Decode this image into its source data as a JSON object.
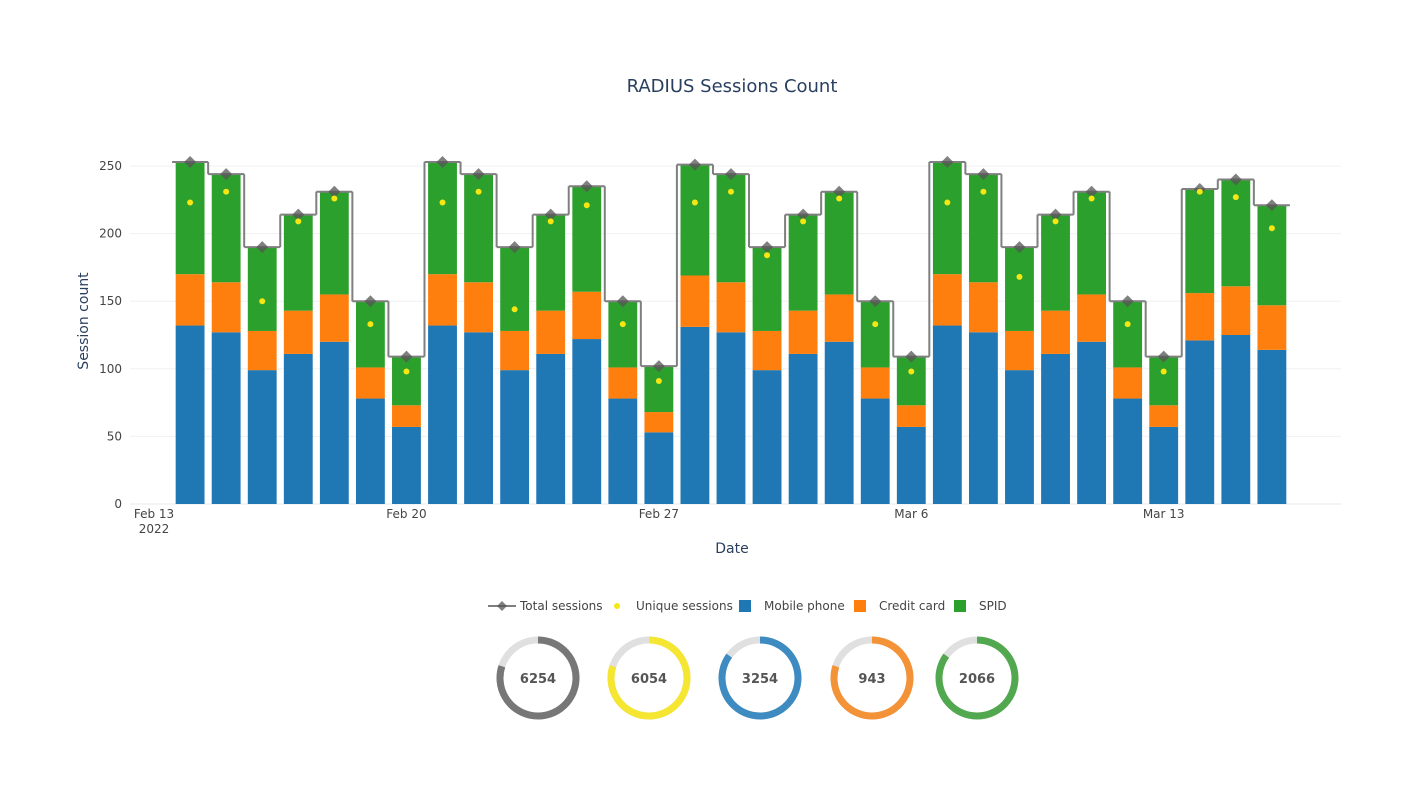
{
  "chart_data": {
    "type": "bar",
    "barmode": "stack",
    "title": "RADIUS Sessions Count",
    "x_label": "Date",
    "y_label": "Session count",
    "x": [
      "2022-02-14",
      "2022-02-15",
      "2022-02-16",
      "2022-02-17",
      "2022-02-18",
      "2022-02-19",
      "2022-02-20",
      "2022-02-21",
      "2022-02-22",
      "2022-02-23",
      "2022-02-24",
      "2022-02-25",
      "2022-02-26",
      "2022-02-27",
      "2022-02-28",
      "2022-03-01",
      "2022-03-02",
      "2022-03-03",
      "2022-03-04",
      "2022-03-05",
      "2022-03-06",
      "2022-03-07",
      "2022-03-08",
      "2022-03-09",
      "2022-03-10",
      "2022-03-11",
      "2022-03-12",
      "2022-03-13",
      "2022-03-14",
      "2022-03-15",
      "2022-03-16"
    ],
    "series": [
      {
        "name": "Total sessions",
        "type": "line",
        "shape": "step",
        "color": "#7f7f7f",
        "marker_color": "#555555",
        "values": [
          253,
          244,
          190,
          214,
          231,
          150,
          109,
          253,
          244,
          190,
          214,
          235,
          150,
          102,
          251,
          244,
          190,
          214,
          231,
          150,
          109,
          253,
          244,
          190,
          214,
          231,
          150,
          109,
          233,
          240,
          221
        ]
      },
      {
        "name": "Unique sessions",
        "type": "scatter",
        "color": "#f5e614",
        "values": [
          223,
          231,
          150,
          209,
          226,
          133,
          98,
          223,
          231,
          144,
          209,
          221,
          133,
          91,
          223,
          231,
          184,
          209,
          226,
          133,
          98,
          223,
          231,
          168,
          209,
          226,
          133,
          98,
          231,
          227,
          204
        ]
      },
      {
        "name": "Mobile phone",
        "type": "bar",
        "color": "#1f77b4",
        "values": [
          132,
          127,
          99,
          111,
          120,
          78,
          57,
          132,
          127,
          99,
          111,
          122,
          78,
          53,
          131,
          127,
          99,
          111,
          120,
          78,
          57,
          132,
          127,
          99,
          111,
          120,
          78,
          57,
          121,
          125,
          114
        ]
      },
      {
        "name": "Credit card",
        "type": "bar",
        "color": "#ff7f0e",
        "values": [
          38,
          37,
          29,
          32,
          35,
          23,
          16,
          38,
          37,
          29,
          32,
          35,
          23,
          15,
          38,
          37,
          29,
          32,
          35,
          23,
          16,
          38,
          37,
          29,
          32,
          35,
          23,
          16,
          35,
          36,
          33
        ]
      },
      {
        "name": "SPID",
        "type": "bar",
        "color": "#2ca02c",
        "values": [
          83,
          80,
          62,
          71,
          76,
          49,
          36,
          83,
          80,
          62,
          71,
          78,
          49,
          34,
          82,
          80,
          62,
          71,
          76,
          49,
          36,
          83,
          80,
          62,
          71,
          76,
          49,
          36,
          77,
          79,
          74
        ]
      }
    ],
    "xlim": [
      "2022-02-12T08:00:00",
      "2022-03-17T22:00:00"
    ],
    "xticks": [
      {
        "value": "2022-02-13T00:00:00",
        "label": "Feb 13\n2022"
      },
      {
        "value": "2022-02-20T00:00:00",
        "label": "Feb 20"
      },
      {
        "value": "2022-02-27T00:00:00",
        "label": "Feb 27"
      },
      {
        "value": "2022-03-06T00:00:00",
        "label": "Mar 6"
      },
      {
        "value": "2022-03-13T00:00:00",
        "label": "Mar 13"
      }
    ],
    "ylim": [
      0,
      250
    ],
    "yticks": [
      0,
      50,
      100,
      150,
      200,
      250
    ],
    "grid": true,
    "legend": "bottom",
    "summary": [
      {
        "value": 6254,
        "color": "#777777",
        "fraction": 0.8
      },
      {
        "value": 6054,
        "color": "#f5e632",
        "fraction": 0.8
      },
      {
        "value": 3254,
        "color": "#3d8bc0",
        "fraction": 0.85
      },
      {
        "value": 943,
        "color": "#f39237",
        "fraction": 0.8
      },
      {
        "value": 2066,
        "color": "#52a84e",
        "fraction": 0.85
      }
    ]
  }
}
